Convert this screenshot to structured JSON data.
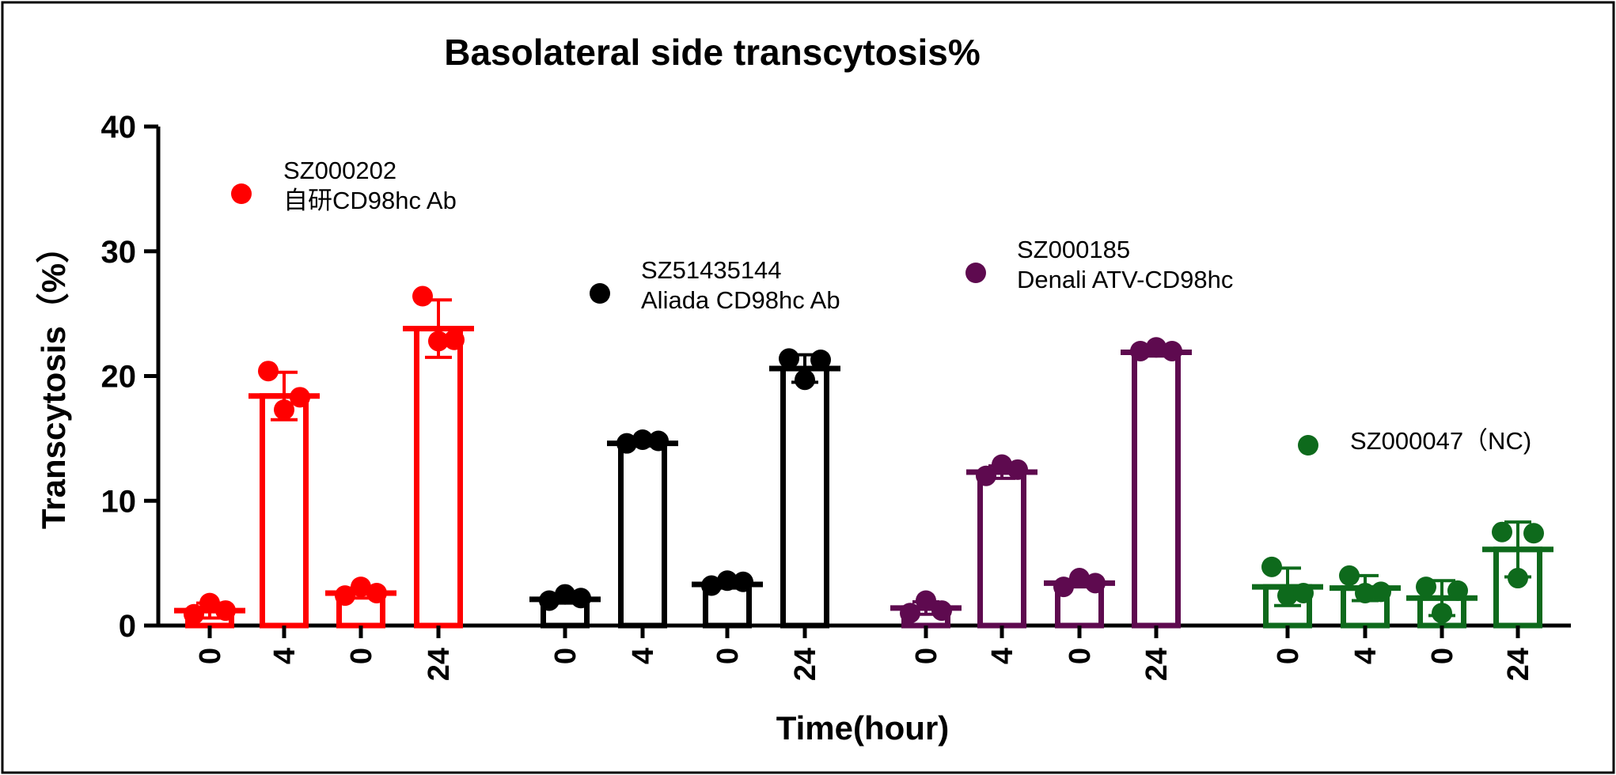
{
  "chart_data": {
    "type": "bar",
    "title": "Basolateral side transcytosis%",
    "xlabel": "Time(hour)",
    "ylabel": "Transcytosis（%）",
    "ylim": [
      0,
      40
    ],
    "yticks": [
      0,
      10,
      20,
      30,
      40
    ],
    "groups": [
      {
        "name_line1": "SZ000202",
        "name_line2": "自研CD98hc Ab",
        "color": "#ff0000",
        "categories": [
          "0",
          "4",
          "0",
          "24"
        ],
        "values": [
          1.2,
          18.4,
          2.6,
          23.8
        ],
        "errors": [
          0.6,
          1.9,
          0.4,
          2.3
        ],
        "points": [
          [
            0.9,
            1.8,
            1.2
          ],
          [
            20.4,
            17.3,
            18.3
          ],
          [
            2.4,
            3.1,
            2.6
          ],
          [
            26.4,
            22.8,
            22.9
          ]
        ]
      },
      {
        "name_line1": "SZ51435144",
        "name_line2": "Aliada CD98hc Ab",
        "color": "#000000",
        "categories": [
          "0",
          "4",
          "0",
          "24"
        ],
        "values": [
          2.1,
          14.6,
          3.3,
          20.6
        ],
        "errors": [
          0.3,
          0.2,
          0.3,
          1.1
        ],
        "points": [
          [
            2.0,
            2.5,
            2.2
          ],
          [
            14.6,
            14.9,
            14.8
          ],
          [
            3.2,
            3.6,
            3.5
          ],
          [
            21.4,
            19.7,
            21.3
          ]
        ]
      },
      {
        "name_line1": "SZ000185",
        "name_line2": "Denali ATV-CD98hc",
        "color": "#5e0a4f",
        "categories": [
          "0",
          "4",
          "0",
          "24"
        ],
        "values": [
          1.4,
          12.3,
          3.4,
          21.9
        ],
        "errors": [
          0.5,
          0.5,
          0.3,
          0.3
        ],
        "points": [
          [
            1.0,
            2.0,
            1.2
          ],
          [
            12.0,
            12.9,
            12.5
          ],
          [
            3.1,
            3.8,
            3.4
          ],
          [
            22.0,
            22.3,
            22.0
          ]
        ]
      },
      {
        "name_line1": "SZ000047（NC)",
        "name_line2": "",
        "color": "#0e6a1c",
        "categories": [
          "0",
          "4",
          "0",
          "24"
        ],
        "values": [
          3.1,
          3.0,
          2.2,
          6.1
        ],
        "errors": [
          1.5,
          1.0,
          1.4,
          2.2
        ],
        "points": [
          [
            4.7,
            2.4,
            2.6
          ],
          [
            4.0,
            2.6,
            2.7
          ],
          [
            3.1,
            1.0,
            2.8
          ],
          [
            7.5,
            3.8,
            7.4
          ]
        ]
      }
    ]
  }
}
